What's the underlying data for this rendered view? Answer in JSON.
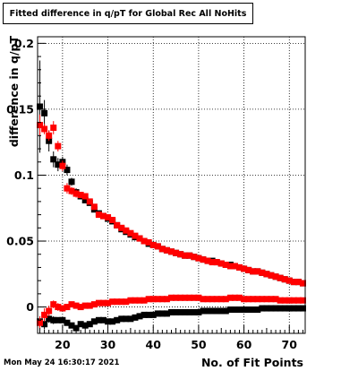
{
  "title": "Fitted difference in q/pT  for Global Rec All NoHits",
  "footer_timestamp": "Mon May 24 16:30:17 2021",
  "chart_data": {
    "type": "scatter",
    "title": "Fitted difference in q/pT  for Global Rec All NoHits",
    "xlabel": "No. of Fit Points",
    "ylabel": "difference in q/pT",
    "xlim": [
      14.5,
      73.5
    ],
    "ylim": [
      -0.02,
      0.205
    ],
    "grid": true,
    "x_ticks": [
      20,
      30,
      40,
      50,
      60,
      70
    ],
    "x_tick_labels": [
      "20",
      "30",
      "40",
      "50",
      "60",
      "70"
    ],
    "y_ticks": [
      0,
      0.05,
      0.1,
      0.15,
      0.2
    ],
    "y_tick_labels": [
      "0",
      "0.05",
      "0.1",
      "0.15",
      "0.2"
    ],
    "series": [
      {
        "color": "#000000",
        "role": "upper",
        "points": [
          [
            15,
            0.152,
            0.035
          ],
          [
            16,
            0.147,
            0.01
          ],
          [
            17,
            0.126,
            0.008
          ],
          [
            18,
            0.112,
            0.006
          ],
          [
            19,
            0.108,
            0.005
          ],
          [
            20,
            0.11,
            0.004
          ],
          [
            21,
            0.104,
            0.004
          ],
          [
            22,
            0.095,
            0.003
          ],
          [
            23,
            0.087,
            0.003
          ],
          [
            24,
            0.084,
            0.002
          ],
          [
            25,
            0.081,
            0.002
          ],
          [
            26,
            0.079,
            0.002
          ],
          [
            27,
            0.074,
            0.002
          ],
          [
            28,
            0.071,
            0.002
          ],
          [
            29,
            0.069,
            0.002
          ],
          [
            30,
            0.067,
            0.002
          ],
          [
            31,
            0.065,
            0.001
          ],
          [
            32,
            0.062,
            0.001
          ],
          [
            33,
            0.059,
            0.001
          ],
          [
            34,
            0.057,
            0.001
          ],
          [
            35,
            0.055,
            0.001
          ],
          [
            36,
            0.053,
            0.001
          ],
          [
            37,
            0.052,
            0.001
          ],
          [
            38,
            0.05,
            0.001
          ],
          [
            39,
            0.048,
            0.001
          ],
          [
            40,
            0.047,
            0.001
          ],
          [
            41,
            0.046,
            0.001
          ],
          [
            42,
            0.044,
            0.001
          ],
          [
            43,
            0.043,
            0.001
          ],
          [
            44,
            0.042,
            0.001
          ],
          [
            45,
            0.041,
            0.001
          ],
          [
            46,
            0.04,
            0.001
          ],
          [
            47,
            0.039,
            0.001
          ],
          [
            48,
            0.039,
            0.001
          ],
          [
            49,
            0.038,
            0.001
          ],
          [
            50,
            0.037,
            0.001
          ],
          [
            51,
            0.036,
            0.001
          ],
          [
            52,
            0.035,
            0.001
          ],
          [
            53,
            0.035,
            0.001
          ],
          [
            54,
            0.034,
            0.001
          ],
          [
            55,
            0.033,
            0.001
          ],
          [
            56,
            0.032,
            0.001
          ],
          [
            57,
            0.032,
            0.001
          ],
          [
            58,
            0.031,
            0.001
          ],
          [
            59,
            0.03,
            0.001
          ],
          [
            60,
            0.029,
            0.001
          ],
          [
            61,
            0.028,
            0.001
          ],
          [
            62,
            0.027,
            0.001
          ],
          [
            63,
            0.027,
            0.001
          ],
          [
            64,
            0.026,
            0.001
          ],
          [
            65,
            0.025,
            0.001
          ],
          [
            66,
            0.024,
            0.001
          ],
          [
            67,
            0.023,
            0.001
          ],
          [
            68,
            0.022,
            0.001
          ],
          [
            69,
            0.021,
            0.001
          ],
          [
            70,
            0.02,
            0.001
          ],
          [
            71,
            0.019,
            0.001
          ],
          [
            72,
            0.019,
            0.001
          ],
          [
            73,
            0.018,
            0.001
          ]
        ]
      },
      {
        "color": "#ff0000",
        "role": "upper",
        "points": [
          [
            15,
            0.138,
            0.008
          ],
          [
            16,
            0.135,
            0.004
          ],
          [
            17,
            0.13,
            0.004
          ],
          [
            18,
            0.136,
            0.005
          ],
          [
            19,
            0.122,
            0.004
          ],
          [
            20,
            0.107,
            0.004
          ],
          [
            21,
            0.09,
            0.004
          ],
          [
            22,
            0.088,
            0.003
          ],
          [
            23,
            0.086,
            0.003
          ],
          [
            24,
            0.085,
            0.002
          ],
          [
            25,
            0.084,
            0.002
          ],
          [
            26,
            0.08,
            0.002
          ],
          [
            27,
            0.076,
            0.002
          ],
          [
            28,
            0.07,
            0.002
          ],
          [
            29,
            0.069,
            0.002
          ],
          [
            30,
            0.068,
            0.002
          ],
          [
            31,
            0.066,
            0.001
          ],
          [
            32,
            0.062,
            0.001
          ],
          [
            33,
            0.06,
            0.001
          ],
          [
            34,
            0.058,
            0.001
          ],
          [
            35,
            0.056,
            0.001
          ],
          [
            36,
            0.054,
            0.001
          ],
          [
            37,
            0.052,
            0.001
          ],
          [
            38,
            0.05,
            0.001
          ],
          [
            39,
            0.049,
            0.001
          ],
          [
            40,
            0.047,
            0.001
          ],
          [
            41,
            0.046,
            0.001
          ],
          [
            42,
            0.044,
            0.001
          ],
          [
            43,
            0.043,
            0.001
          ],
          [
            44,
            0.042,
            0.001
          ],
          [
            45,
            0.041,
            0.001
          ],
          [
            46,
            0.04,
            0.001
          ],
          [
            47,
            0.039,
            0.001
          ],
          [
            48,
            0.039,
            0.001
          ],
          [
            49,
            0.038,
            0.001
          ],
          [
            50,
            0.037,
            0.001
          ],
          [
            51,
            0.036,
            0.001
          ],
          [
            52,
            0.035,
            0.001
          ],
          [
            53,
            0.034,
            0.001
          ],
          [
            54,
            0.034,
            0.001
          ],
          [
            55,
            0.033,
            0.001
          ],
          [
            56,
            0.032,
            0.001
          ],
          [
            57,
            0.031,
            0.001
          ],
          [
            58,
            0.031,
            0.001
          ],
          [
            59,
            0.03,
            0.001
          ],
          [
            60,
            0.029,
            0.001
          ],
          [
            61,
            0.028,
            0.001
          ],
          [
            62,
            0.027,
            0.001
          ],
          [
            63,
            0.027,
            0.001
          ],
          [
            64,
            0.026,
            0.001
          ],
          [
            65,
            0.025,
            0.001
          ],
          [
            66,
            0.024,
            0.001
          ],
          [
            67,
            0.023,
            0.001
          ],
          [
            68,
            0.022,
            0.001
          ],
          [
            69,
            0.021,
            0.001
          ],
          [
            70,
            0.02,
            0.001
          ],
          [
            71,
            0.019,
            0.001
          ],
          [
            72,
            0.019,
            0.001
          ],
          [
            73,
            0.018,
            0.001
          ]
        ]
      },
      {
        "color": "#000000",
        "role": "lower",
        "points": [
          [
            15,
            -0.011,
            0.004
          ],
          [
            16,
            -0.013,
            0.004
          ],
          [
            17,
            -0.009,
            0.003
          ],
          [
            18,
            -0.01,
            0.003
          ],
          [
            19,
            -0.01,
            0.002
          ],
          [
            20,
            -0.01,
            0.002
          ],
          [
            21,
            -0.012,
            0.002
          ],
          [
            22,
            -0.014,
            0.002
          ],
          [
            23,
            -0.016,
            0.002
          ],
          [
            24,
            -0.013,
            0.002
          ],
          [
            25,
            -0.014,
            0.002
          ],
          [
            26,
            -0.013,
            0.001
          ],
          [
            27,
            -0.011,
            0.001
          ],
          [
            28,
            -0.01,
            0.001
          ],
          [
            29,
            -0.01,
            0.001
          ],
          [
            30,
            -0.011,
            0.001
          ],
          [
            31,
            -0.011,
            0.001
          ],
          [
            32,
            -0.01,
            0.001
          ],
          [
            33,
            -0.009,
            0.001
          ],
          [
            34,
            -0.009,
            0.001
          ],
          [
            35,
            -0.009,
            0.001
          ],
          [
            36,
            -0.008,
            0.001
          ],
          [
            37,
            -0.007,
            0.001
          ],
          [
            38,
            -0.006,
            0.001
          ],
          [
            39,
            -0.006,
            0.001
          ],
          [
            40,
            -0.006,
            0.001
          ],
          [
            41,
            -0.005,
            0.001
          ],
          [
            42,
            -0.005,
            0.001
          ],
          [
            43,
            -0.005,
            0.001
          ],
          [
            44,
            -0.004,
            0.001
          ],
          [
            45,
            -0.004,
            0.001
          ],
          [
            46,
            -0.004,
            0.001
          ],
          [
            47,
            -0.004,
            0.001
          ],
          [
            48,
            -0.004,
            0.001
          ],
          [
            49,
            -0.004,
            0.001
          ],
          [
            50,
            -0.004,
            0.001
          ],
          [
            51,
            -0.003,
            0.001
          ],
          [
            52,
            -0.003,
            0.001
          ],
          [
            53,
            -0.003,
            0.001
          ],
          [
            54,
            -0.003,
            0.001
          ],
          [
            55,
            -0.003,
            0.001
          ],
          [
            56,
            -0.003,
            0.001
          ],
          [
            57,
            -0.002,
            0.001
          ],
          [
            58,
            -0.002,
            0.001
          ],
          [
            59,
            -0.002,
            0.001
          ],
          [
            60,
            -0.002,
            0.001
          ],
          [
            61,
            -0.002,
            0.001
          ],
          [
            62,
            -0.002,
            0.001
          ],
          [
            63,
            -0.002,
            0.001
          ],
          [
            64,
            -0.001,
            0.001
          ],
          [
            65,
            -0.001,
            0.001
          ],
          [
            66,
            -0.001,
            0.001
          ],
          [
            67,
            -0.001,
            0.001
          ],
          [
            68,
            -0.001,
            0.001
          ],
          [
            69,
            -0.001,
            0.001
          ],
          [
            70,
            -0.001,
            0.001
          ],
          [
            71,
            -0.001,
            0.001
          ],
          [
            72,
            -0.001,
            0.001
          ],
          [
            73,
            -0.001,
            0.001
          ]
        ]
      },
      {
        "color": "#ff0000",
        "role": "lower",
        "points": [
          [
            15,
            -0.012,
            0.005
          ],
          [
            16,
            -0.006,
            0.005
          ],
          [
            17,
            -0.003,
            0.004
          ],
          [
            18,
            0.002,
            0.003
          ],
          [
            19,
            0.0,
            0.003
          ],
          [
            20,
            -0.001,
            0.002
          ],
          [
            21,
            0.0,
            0.002
          ],
          [
            22,
            0.002,
            0.002
          ],
          [
            23,
            0.001,
            0.002
          ],
          [
            24,
            0.0,
            0.002
          ],
          [
            25,
            0.001,
            0.002
          ],
          [
            26,
            0.001,
            0.001
          ],
          [
            27,
            0.002,
            0.001
          ],
          [
            28,
            0.003,
            0.001
          ],
          [
            29,
            0.003,
            0.001
          ],
          [
            30,
            0.003,
            0.001
          ],
          [
            31,
            0.004,
            0.001
          ],
          [
            32,
            0.004,
            0.001
          ],
          [
            33,
            0.004,
            0.001
          ],
          [
            34,
            0.004,
            0.001
          ],
          [
            35,
            0.005,
            0.001
          ],
          [
            36,
            0.005,
            0.001
          ],
          [
            37,
            0.005,
            0.001
          ],
          [
            38,
            0.005,
            0.001
          ],
          [
            39,
            0.006,
            0.001
          ],
          [
            40,
            0.006,
            0.001
          ],
          [
            41,
            0.006,
            0.001
          ],
          [
            42,
            0.006,
            0.001
          ],
          [
            43,
            0.006,
            0.001
          ],
          [
            44,
            0.007,
            0.001
          ],
          [
            45,
            0.007,
            0.001
          ],
          [
            46,
            0.007,
            0.001
          ],
          [
            47,
            0.007,
            0.001
          ],
          [
            48,
            0.007,
            0.001
          ],
          [
            49,
            0.007,
            0.001
          ],
          [
            50,
            0.007,
            0.001
          ],
          [
            51,
            0.006,
            0.001
          ],
          [
            52,
            0.006,
            0.001
          ],
          [
            53,
            0.006,
            0.001
          ],
          [
            54,
            0.006,
            0.001
          ],
          [
            55,
            0.006,
            0.001
          ],
          [
            56,
            0.006,
            0.001
          ],
          [
            57,
            0.007,
            0.001
          ],
          [
            58,
            0.007,
            0.001
          ],
          [
            59,
            0.007,
            0.001
          ],
          [
            60,
            0.006,
            0.001
          ],
          [
            61,
            0.006,
            0.001
          ],
          [
            62,
            0.006,
            0.001
          ],
          [
            63,
            0.006,
            0.001
          ],
          [
            64,
            0.006,
            0.001
          ],
          [
            65,
            0.006,
            0.001
          ],
          [
            66,
            0.006,
            0.001
          ],
          [
            67,
            0.006,
            0.001
          ],
          [
            68,
            0.005,
            0.001
          ],
          [
            69,
            0.005,
            0.001
          ],
          [
            70,
            0.005,
            0.001
          ],
          [
            71,
            0.005,
            0.001
          ],
          [
            72,
            0.005,
            0.001
          ],
          [
            73,
            0.005,
            0.001
          ]
        ]
      }
    ]
  }
}
